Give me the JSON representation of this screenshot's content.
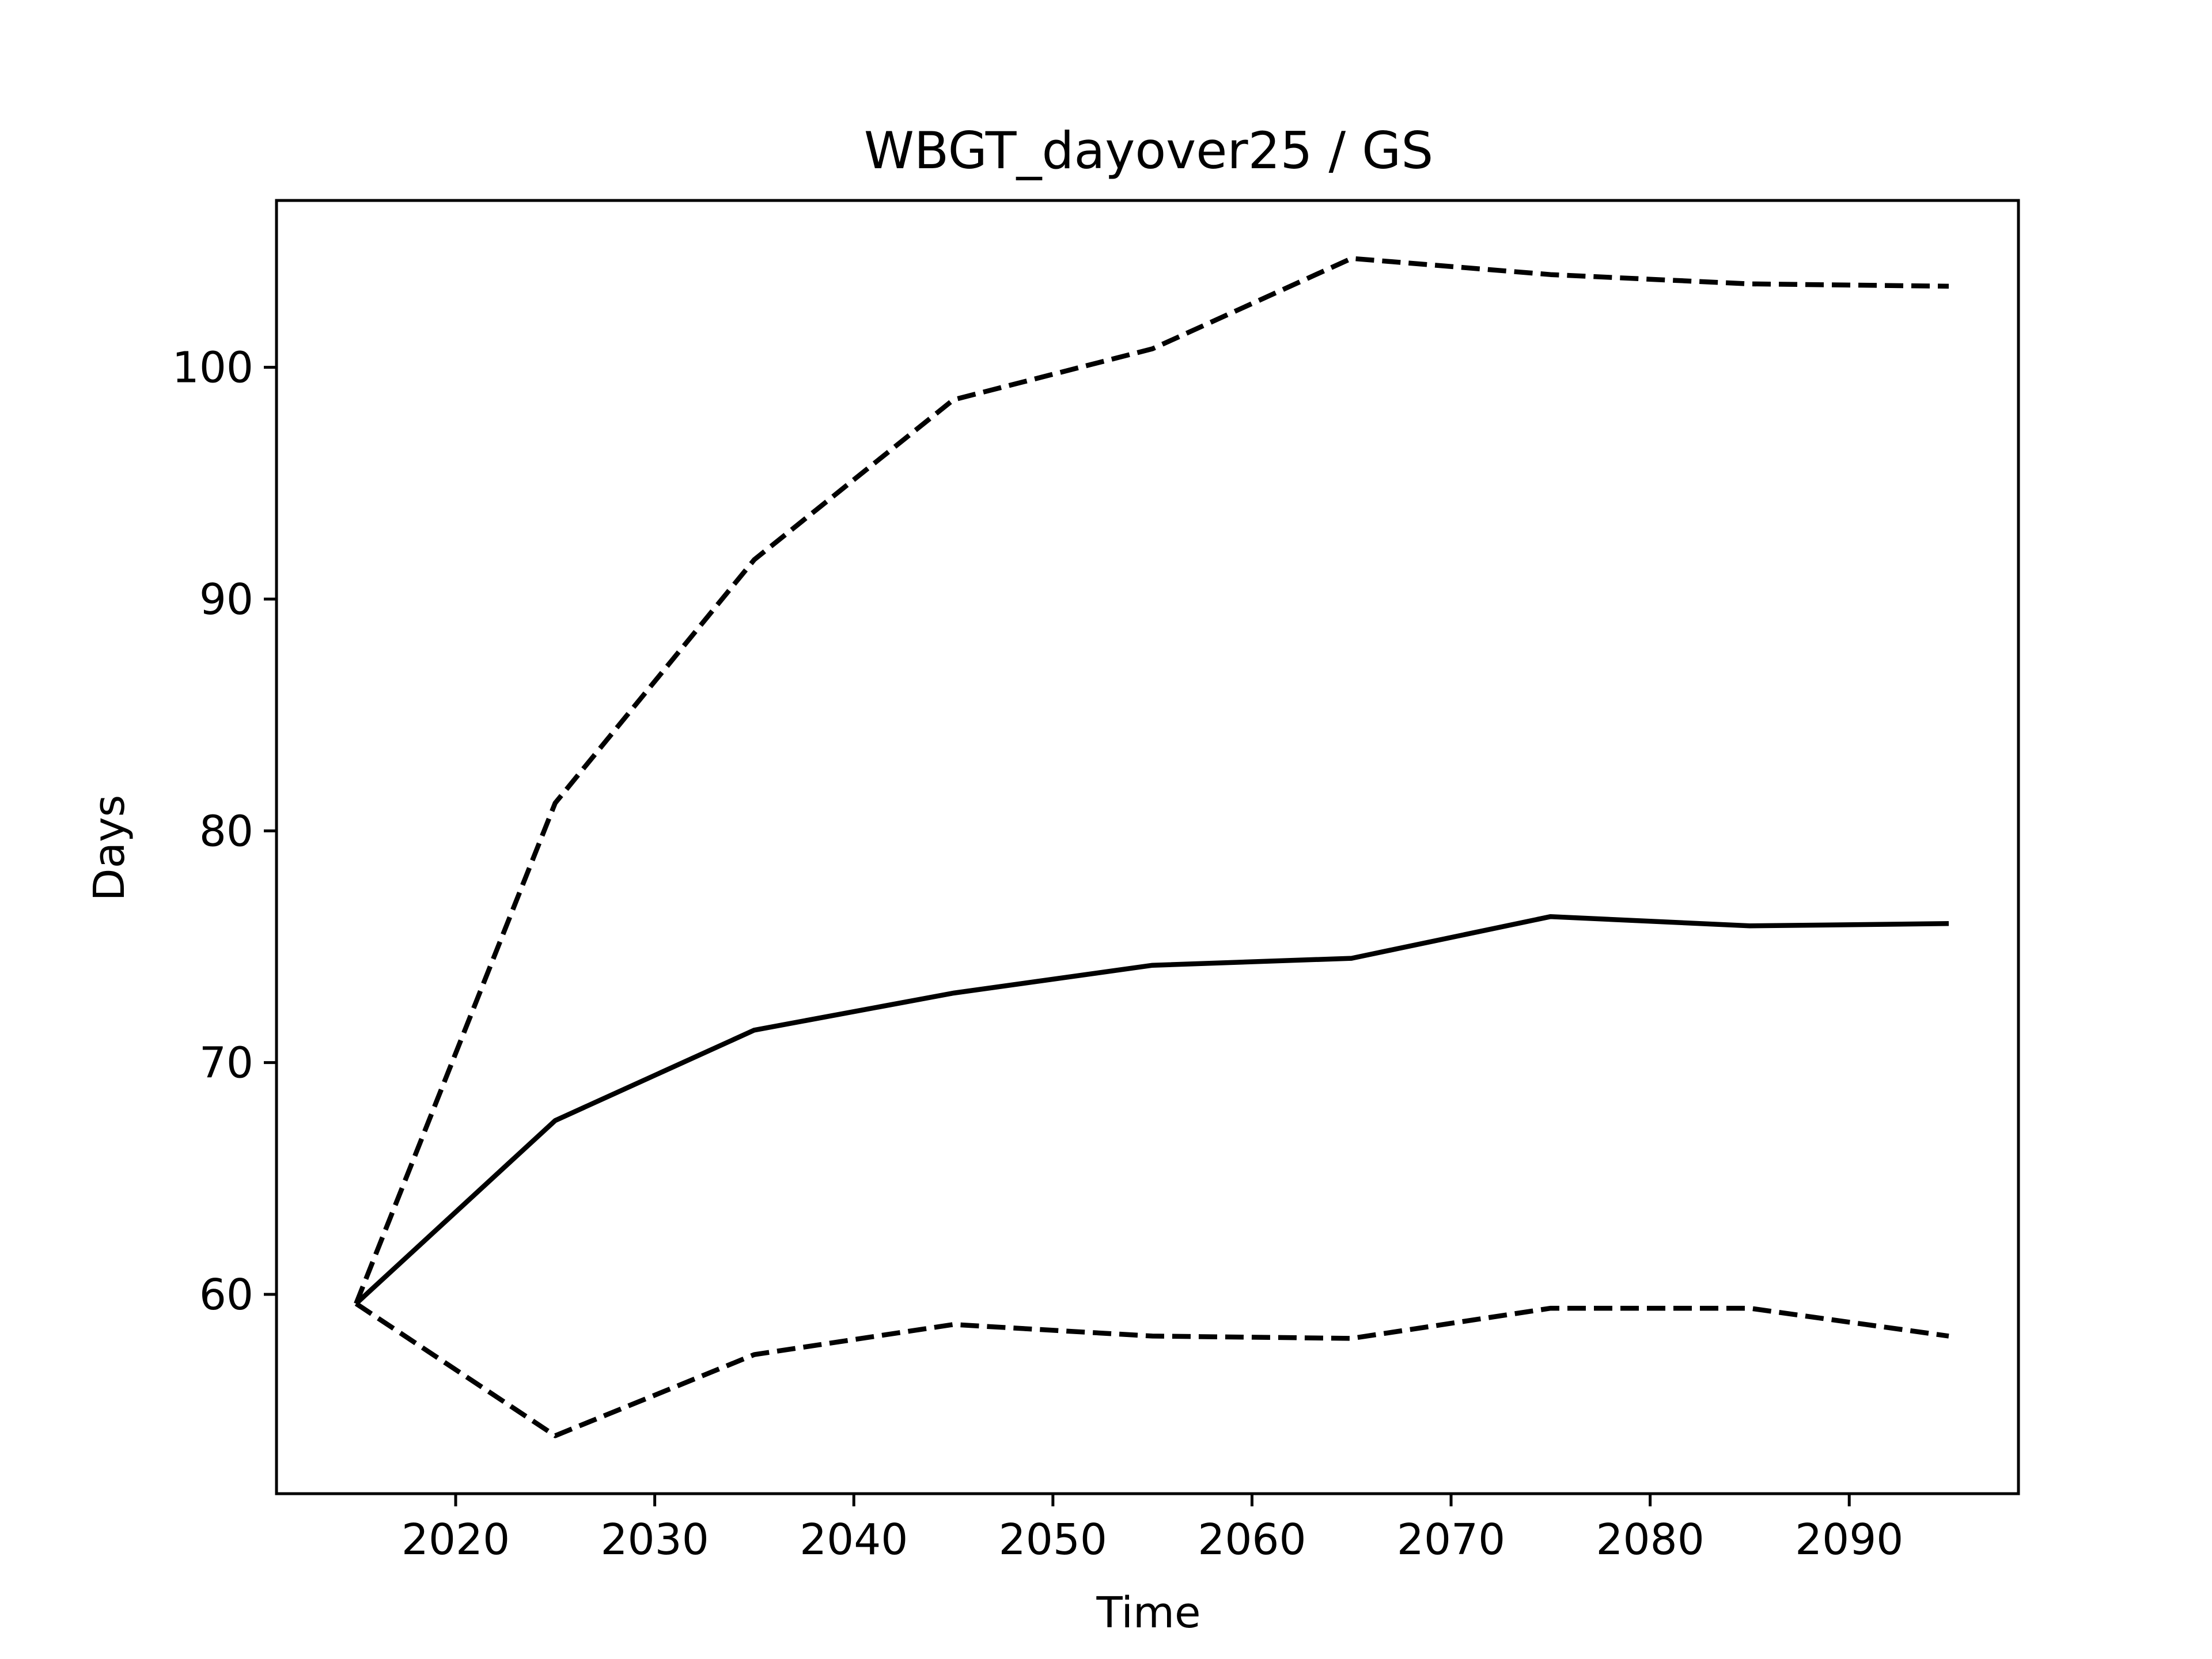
{
  "chart_data": {
    "type": "line",
    "title": "WBGT_dayover25 / GS",
    "xlabel": "Time",
    "ylabel": "Days",
    "xlim": [
      2011,
      2098.5
    ],
    "ylim": [
      51.4,
      107.2
    ],
    "xticks": [
      2020,
      2030,
      2040,
      2050,
      2060,
      2070,
      2080,
      2090
    ],
    "yticks": [
      60,
      70,
      80,
      90,
      100
    ],
    "grid": false,
    "legend": "none",
    "x": [
      2015,
      2025,
      2035,
      2045,
      2055,
      2065,
      2075,
      2085,
      2095
    ],
    "series": [
      {
        "style": "solid",
        "color": "#000000",
        "values": [
          59.6,
          67.5,
          71.4,
          73.0,
          74.2,
          74.5,
          76.3,
          75.9,
          76.0
        ]
      },
      {
        "style": "dashed",
        "color": "#000000",
        "values": [
          59.6,
          81.2,
          91.7,
          98.6,
          100.8,
          104.7,
          104.0,
          103.6,
          103.5
        ]
      },
      {
        "style": "dashed",
        "color": "#000000",
        "values": [
          59.6,
          53.9,
          57.4,
          58.7,
          58.2,
          58.1,
          59.4,
          59.4,
          58.2
        ]
      }
    ]
  }
}
